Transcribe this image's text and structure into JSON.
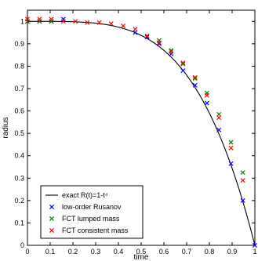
{
  "chart_data": {
    "type": "scatter",
    "title": "",
    "xlabel": "time",
    "ylabel": "radius",
    "xlim": [
      0,
      1
    ],
    "ylim": [
      0,
      1.05
    ],
    "grid": false,
    "legend_position": "bottom-left",
    "x_ticks": [
      "0",
      "0.1",
      "0.2",
      "0.3",
      "0.4",
      "0.5",
      "0.6",
      "0.7",
      "0.8",
      "0.9",
      "1"
    ],
    "y_ticks": [
      "0",
      "0.1",
      "0.2",
      "0.3",
      "0.4",
      "0.5",
      "0.6",
      "0.7",
      "0.8",
      "0.9",
      "1"
    ],
    "series": [
      {
        "name": "exact R(t)=1-t⁴",
        "kind": "line",
        "color": "#000000",
        "formula": "1 - t^4"
      },
      {
        "name": "low-order Rusanov",
        "kind": "marker",
        "color": "#0000ff",
        "x": [
          0.0,
          0.053,
          0.105,
          0.158,
          0.474,
          0.526,
          0.579,
          0.632,
          0.684,
          0.737,
          0.789,
          0.842,
          0.895,
          0.947,
          1.0
        ],
        "y": [
          1.0,
          1.0,
          1.0,
          1.01,
          0.95,
          0.93,
          0.9,
          0.855,
          0.78,
          0.715,
          0.635,
          0.515,
          0.365,
          0.2,
          0.0
        ]
      },
      {
        "name": "FCT lumped mass",
        "kind": "marker",
        "color": "#008000",
        "x": [
          0.0,
          0.053,
          0.105,
          0.579,
          0.632,
          0.684,
          0.737,
          0.789,
          0.842,
          0.895,
          0.947
        ],
        "y": [
          1.0,
          1.0,
          1.0,
          0.915,
          0.87,
          0.81,
          0.745,
          0.68,
          0.585,
          0.46,
          0.325
        ]
      },
      {
        "name": "FCT consistent mass",
        "kind": "marker",
        "color": "#ff0000",
        "x": [
          0.0,
          0.053,
          0.105,
          0.158,
          0.211,
          0.263,
          0.316,
          0.368,
          0.421,
          0.474,
          0.526,
          0.579,
          0.632,
          0.684,
          0.737,
          0.789,
          0.842,
          0.895,
          0.947
        ],
        "y": [
          1.01,
          1.01,
          1.01,
          1.0,
          1.0,
          0.995,
          0.995,
          0.99,
          0.98,
          0.965,
          0.935,
          0.905,
          0.865,
          0.815,
          0.75,
          0.67,
          0.57,
          0.435,
          0.29
        ]
      }
    ]
  }
}
